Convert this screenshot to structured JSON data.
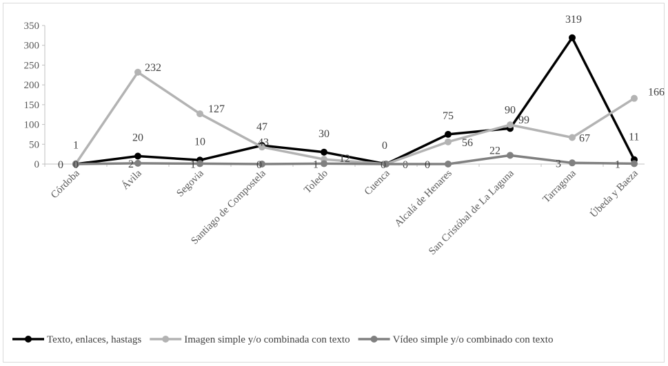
{
  "chart_data": {
    "type": "line",
    "title": "",
    "xlabel": "",
    "ylabel": "",
    "ylim": [
      0,
      350
    ],
    "yticks": [
      0,
      50,
      100,
      150,
      200,
      250,
      300,
      350
    ],
    "grid": false,
    "legend_position": "bottom",
    "categories": [
      "Córdoba",
      "Ávila",
      "Segovia",
      "Santiago de Compostela",
      "Toledo",
      "Cuenca",
      "Alcalá de Henares",
      "San Cristóbal de La Laguna",
      "Tarragona",
      "Úbeda y Baeza"
    ],
    "series": [
      {
        "name": "Texto, enlaces, hastags",
        "color": "#000000",
        "values": [
          0,
          20,
          10,
          47,
          30,
          0,
          75,
          90,
          319,
          11
        ]
      },
      {
        "name": "Imagen simple y/o combinada con texto",
        "color": "#b3b3b3",
        "values": [
          1,
          232,
          127,
          43,
          12,
          0,
          56,
          99,
          67,
          166
        ]
      },
      {
        "name": "Vídeo simple y/o combinado con texto",
        "color": "#808080",
        "values": [
          0,
          2,
          1,
          0,
          1,
          0,
          0,
          22,
          3,
          1
        ]
      }
    ]
  }
}
